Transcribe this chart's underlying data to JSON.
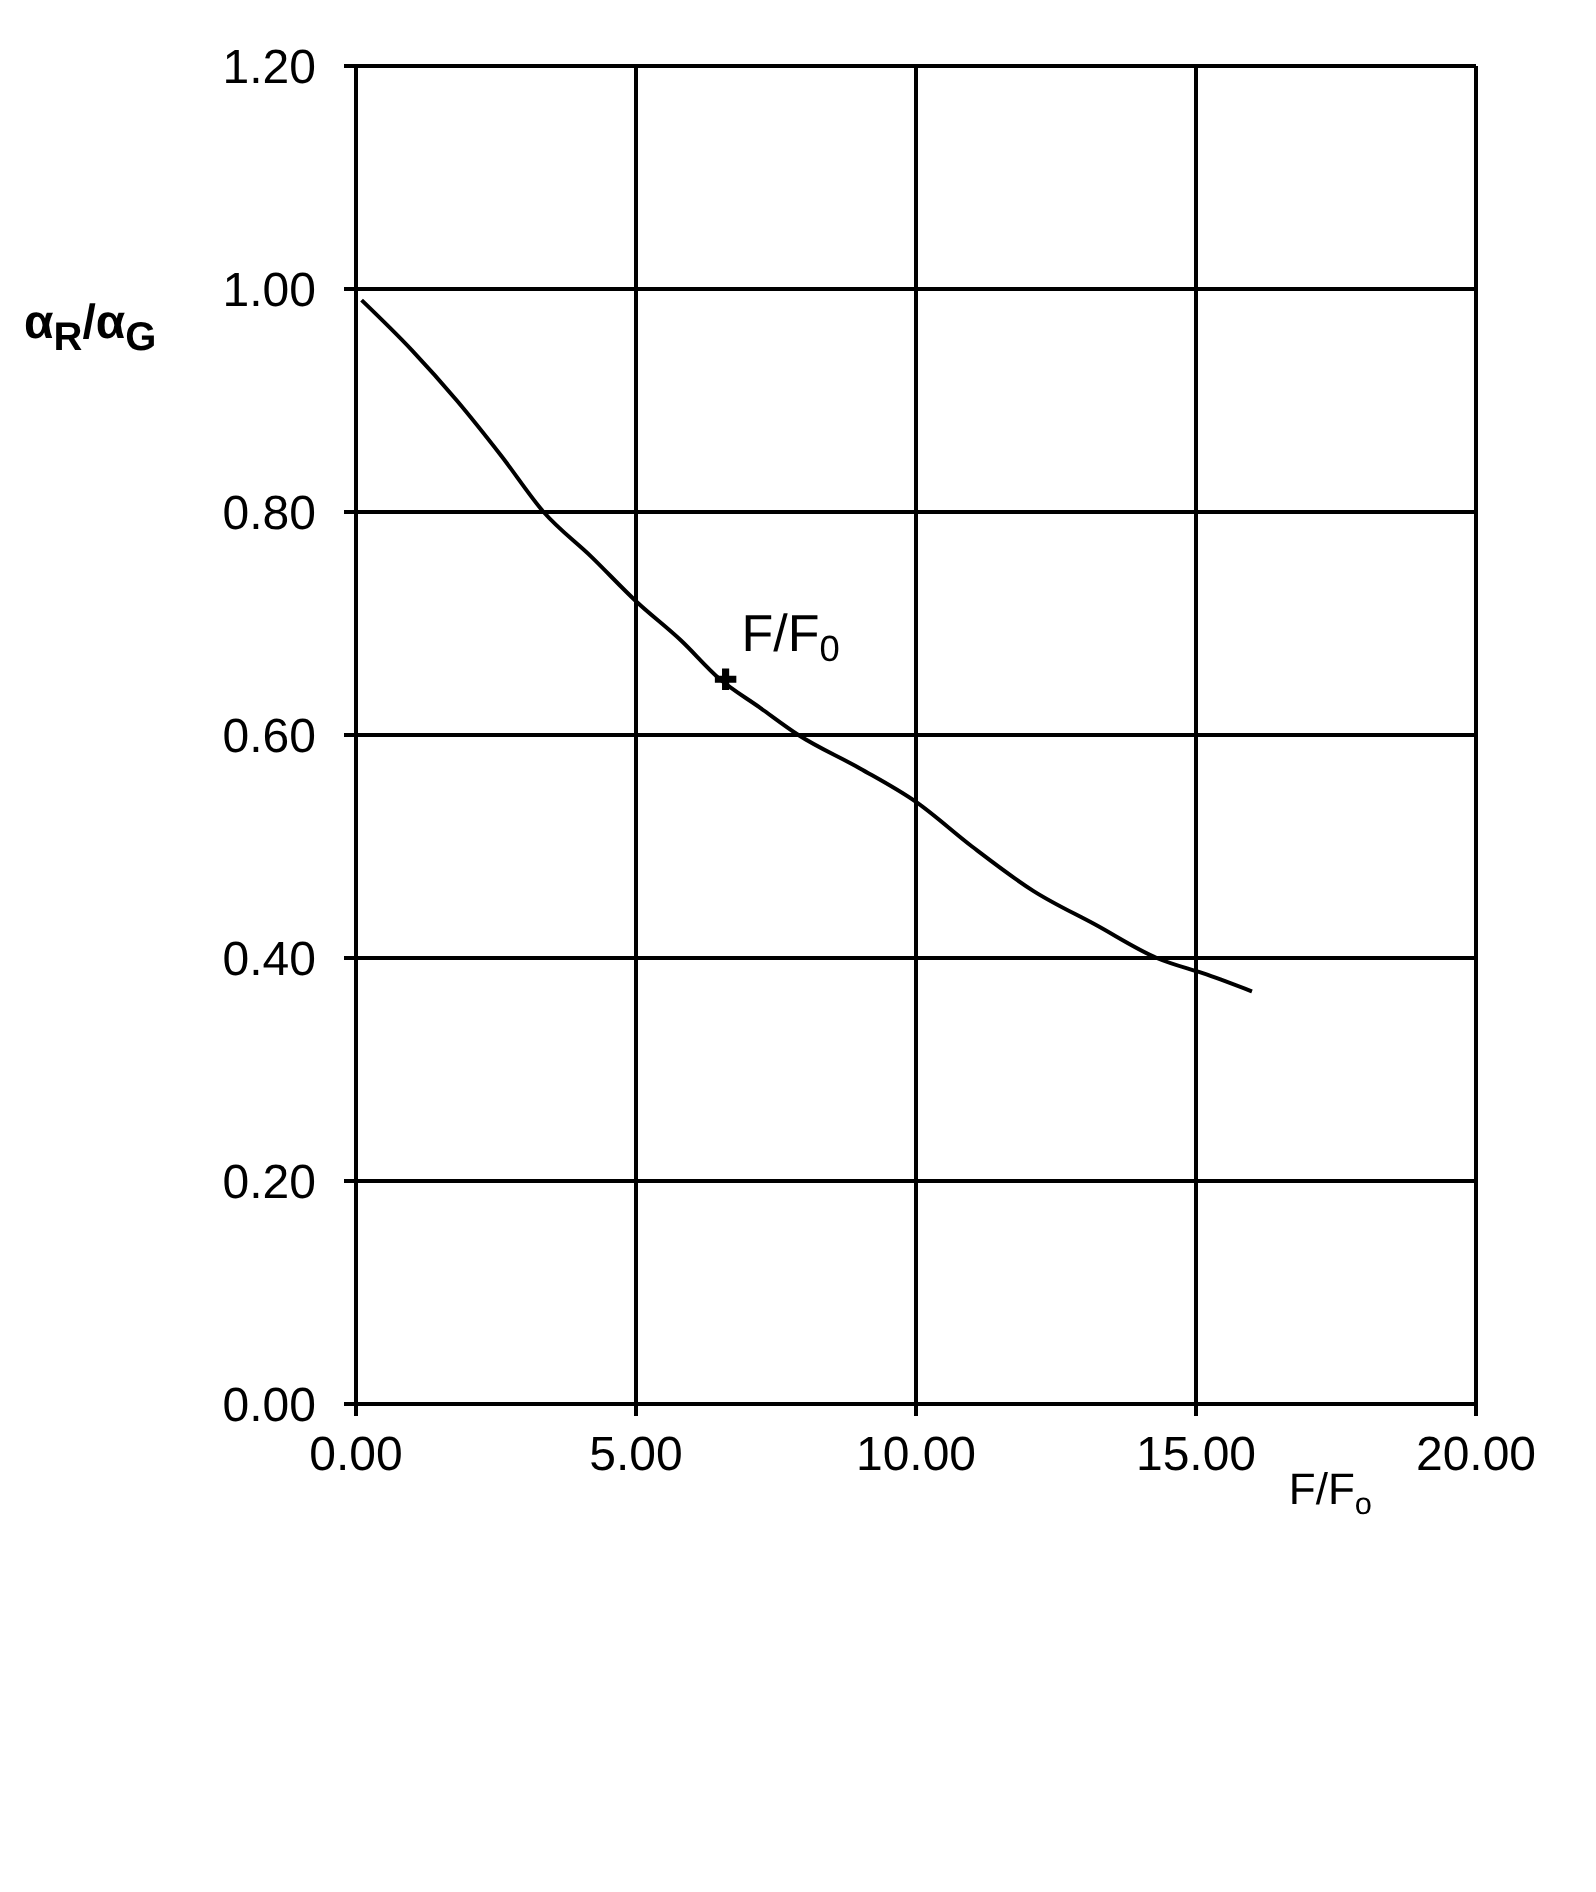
{
  "chart_data": {
    "type": "line",
    "xlabel": "F/F$_{o}$",
    "ylabel": "α$_{R}$/α$_{G}$",
    "xlim": [
      0,
      20
    ],
    "ylim": [
      0,
      1.2
    ],
    "xticks": [
      {
        "value": 0,
        "label": "0.00"
      },
      {
        "value": 5,
        "label": "5.00"
      },
      {
        "value": 10,
        "label": "10.00"
      },
      {
        "value": 15,
        "label": "15.00"
      },
      {
        "value": 20,
        "label": "20.00"
      }
    ],
    "yticks": [
      {
        "value": 0,
        "label": "0.00"
      },
      {
        "value": 0.2,
        "label": "0.20"
      },
      {
        "value": 0.4,
        "label": "0.40"
      },
      {
        "value": 0.6,
        "label": "0.60"
      },
      {
        "value": 0.8,
        "label": "0.80"
      },
      {
        "value": 1,
        "label": "1.00"
      },
      {
        "value": 1.2,
        "label": "1.20"
      }
    ],
    "grid": true,
    "series": [
      {
        "color": "#000000",
        "marker": "none",
        "x": [
          0.1,
          1.0,
          1.8,
          2.6,
          3.35,
          4.2,
          5.0,
          5.8,
          6.5,
          7.2,
          7.9,
          9.0,
          10.0,
          11.0,
          12.1,
          13.2,
          14.3,
          15.2,
          16.0
        ],
        "values": [
          0.99,
          0.945,
          0.9,
          0.85,
          0.8,
          0.76,
          0.72,
          0.685,
          0.65,
          0.625,
          0.6,
          0.57,
          0.54,
          0.5,
          0.46,
          0.43,
          0.4,
          0.385,
          0.37
        ]
      },
      {
        "type": "scatter",
        "color": "#000000",
        "marker": "cross",
        "x": [
          6.6
        ],
        "values": [
          0.65
        ]
      }
    ],
    "annotations": [
      {
        "text": "F/F$_{0}$",
        "x": 6.6,
        "y": 0.65
      }
    ]
  }
}
